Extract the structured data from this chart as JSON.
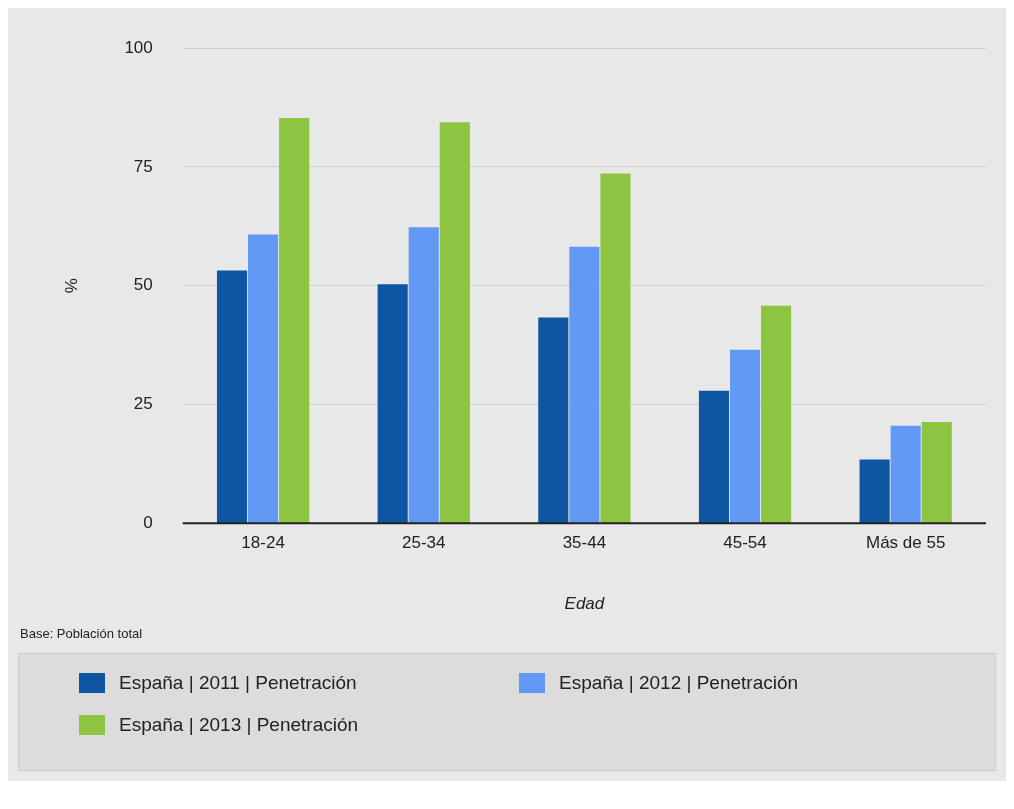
{
  "chart_data": {
    "type": "bar",
    "xlabel": "Edad",
    "ylabel": "%",
    "categories": [
      "18-24",
      "25-34",
      "35-44",
      "45-54",
      "Más de 55"
    ],
    "series": [
      {
        "name": "España | 2011 | Penetración",
        "color": "#0e56a1",
        "values": [
          53.2,
          50.3,
          43.3,
          27.9,
          13.4
        ]
      },
      {
        "name": "España | 2012 | Penetración",
        "color": "#6299f4",
        "values": [
          60.8,
          62.3,
          58.2,
          36.5,
          20.5
        ]
      },
      {
        "name": "España | 2013 | Penetración",
        "color": "#8dc442",
        "values": [
          85.3,
          84.4,
          73.6,
          45.8,
          21.3
        ]
      }
    ],
    "ylim": [
      0,
      100
    ],
    "yticks": [
      0,
      25,
      50,
      75,
      100
    ],
    "grid": "y",
    "legend": "bottom",
    "annotations": [
      "Base: Población total"
    ]
  }
}
